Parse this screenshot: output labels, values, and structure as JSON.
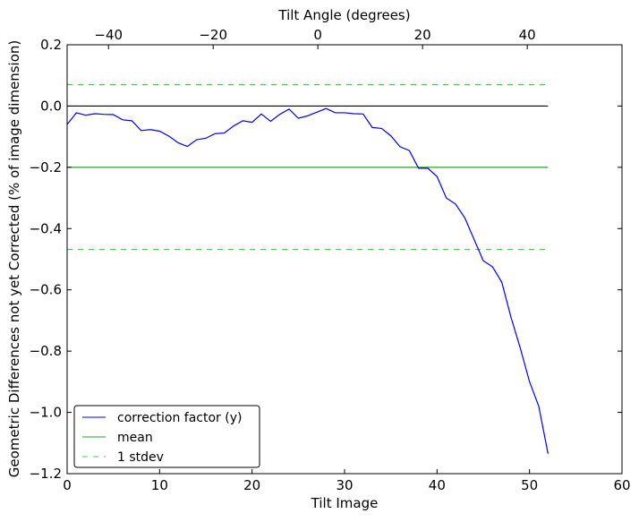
{
  "chart_data": {
    "type": "line",
    "title": "",
    "xlabel": "Tilt Image",
    "ylabel": "Geometric Differences not yet Corrected (% of image dimension)",
    "top_xlabel": "Tilt Angle (degrees)",
    "xlim": [
      0,
      60
    ],
    "ylim": [
      -1.2,
      0.2
    ],
    "top_xlim": [
      -47.9,
      58.1
    ],
    "xticks": [
      0,
      10,
      20,
      30,
      40,
      50,
      60
    ],
    "yticks": [
      0.2,
      0.0,
      -0.2,
      -0.4,
      -0.6,
      -0.8,
      -1.0,
      -1.2
    ],
    "top_xticks": [
      -40,
      -20,
      0,
      20,
      40
    ],
    "xtick_labels": [
      "0",
      "10",
      "20",
      "30",
      "40",
      "50",
      "60"
    ],
    "ytick_labels": [
      "0.2",
      "0.0",
      "−0.2",
      "−0.4",
      "−0.6",
      "−0.8",
      "−1.0",
      "−1.2"
    ],
    "top_xtick_labels": [
      "−40",
      "−20",
      "0",
      "20",
      "40"
    ],
    "grid": false,
    "legend_placement": "lower-left",
    "series": [
      {
        "name": "correction factor (y)",
        "color": "#0000ff",
        "style": "solid",
        "x": [
          0,
          1,
          2,
          3,
          4,
          5,
          6,
          7,
          8,
          9,
          10,
          11,
          12,
          13,
          14,
          15,
          16,
          17,
          18,
          19,
          20,
          21,
          22,
          23,
          24,
          25,
          26,
          27,
          28,
          29,
          30,
          31,
          32,
          33,
          34,
          35,
          36,
          37,
          38,
          39,
          40,
          41,
          42,
          43,
          44,
          45,
          46,
          47,
          48,
          49,
          50,
          51,
          52
        ],
        "y": [
          -0.06,
          -0.022,
          -0.03,
          -0.025,
          -0.027,
          -0.028,
          -0.045,
          -0.048,
          -0.08,
          -0.077,
          -0.082,
          -0.098,
          -0.12,
          -0.132,
          -0.11,
          -0.105,
          -0.09,
          -0.088,
          -0.065,
          -0.048,
          -0.053,
          -0.026,
          -0.05,
          -0.027,
          -0.01,
          -0.04,
          -0.032,
          -0.02,
          -0.008,
          -0.022,
          -0.022,
          -0.025,
          -0.026,
          -0.07,
          -0.073,
          -0.097,
          -0.133,
          -0.145,
          -0.203,
          -0.203,
          -0.23,
          -0.3,
          -0.32,
          -0.365,
          -0.435,
          -0.505,
          -0.525,
          -0.575,
          -0.69,
          -0.79,
          -0.9,
          -0.98,
          -1.135
        ]
      },
      {
        "name": "mean",
        "color": "#2ca02c",
        "style": "solid",
        "x": [
          0,
          52
        ],
        "y": [
          -0.2,
          -0.2
        ]
      },
      {
        "name": "1 stdev",
        "color": "#55c455",
        "style": "dashed",
        "x": [
          0,
          52
        ],
        "y": [
          0.07,
          0.07
        ]
      },
      {
        "name": "1 stdev upper/lower",
        "color": "#55c455",
        "style": "dashed",
        "x": [
          0,
          52
        ],
        "y": [
          -0.468,
          -0.468
        ],
        "in_legend": false
      },
      {
        "name": "zero",
        "color": "#000000",
        "style": "solid",
        "x": [
          0,
          52
        ],
        "y": [
          0,
          0
        ],
        "in_legend": false
      }
    ]
  }
}
